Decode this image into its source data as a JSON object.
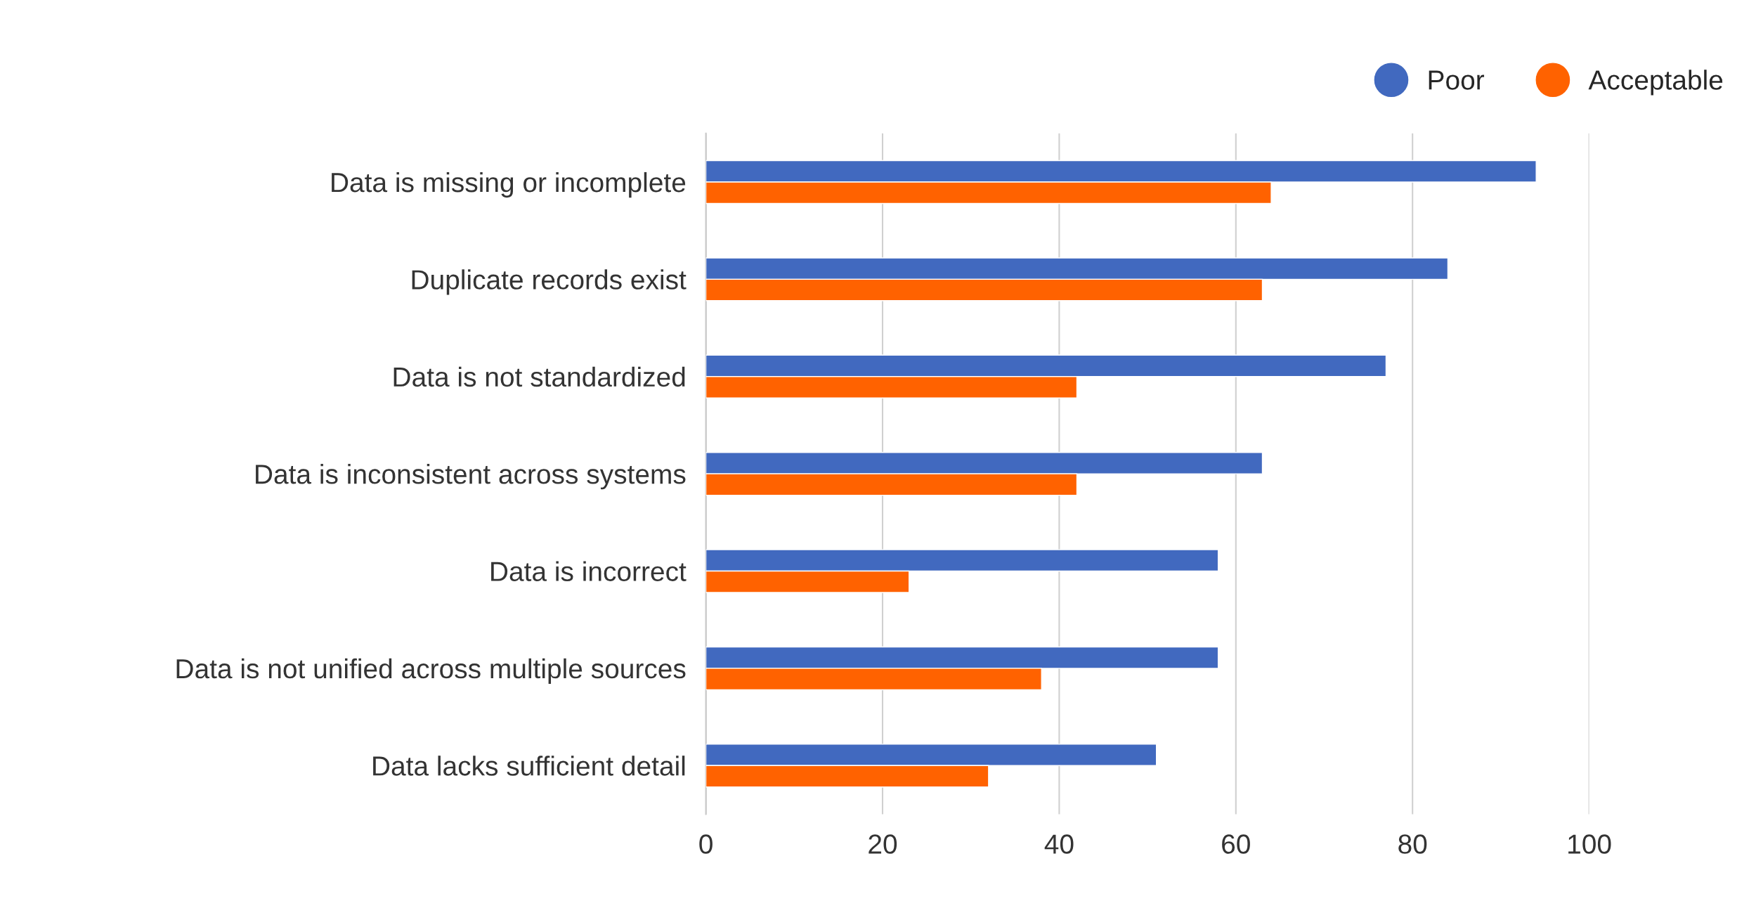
{
  "chart_data": {
    "type": "bar",
    "orientation": "horizontal",
    "categories": [
      "Data is missing or incomplete",
      "Duplicate records exist",
      "Data is not standardized",
      "Data is inconsistent across systems",
      "Data is incorrect",
      "Data is not unified across multiple sources",
      "Data lacks sufficient detail"
    ],
    "series": [
      {
        "name": "Poor",
        "color": "#4169bf",
        "values": [
          94,
          84,
          77,
          63,
          58,
          58,
          51
        ]
      },
      {
        "name": "Acceptable",
        "color": "#ff6200",
        "values": [
          64,
          63,
          42,
          42,
          23,
          38,
          32
        ]
      }
    ],
    "xlim": [
      0,
      100
    ],
    "xticks": [
      0,
      20,
      40,
      60,
      80,
      100
    ],
    "grid": "x",
    "legend": "top right"
  }
}
